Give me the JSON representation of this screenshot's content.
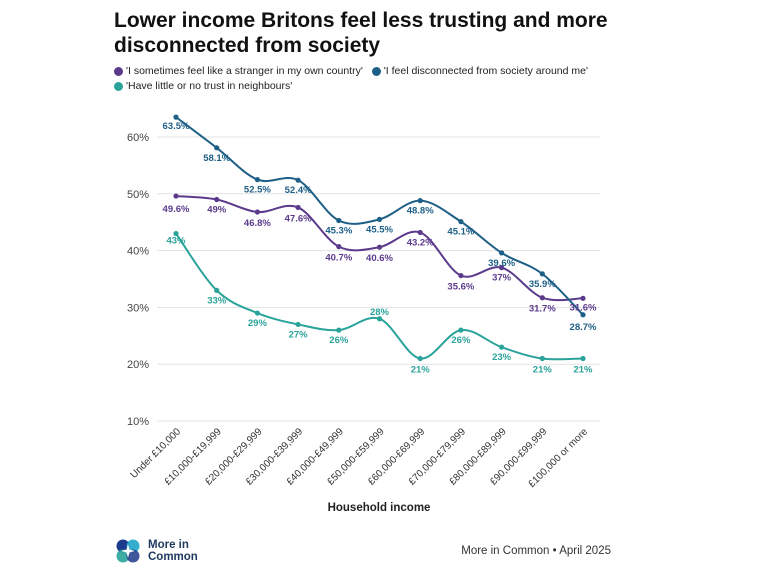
{
  "title": "Lower income Britons feel less trusting and more disconnected from society",
  "chart_data": {
    "type": "line",
    "title": "Lower income Britons feel less trusting and more disconnected from society",
    "xlabel": "Household income",
    "ylabel": "",
    "ylim": [
      10,
      65
    ],
    "yticks": [
      10,
      20,
      30,
      40,
      50,
      60
    ],
    "ytick_labels": [
      "10%",
      "20%",
      "30%",
      "40%",
      "50%",
      "60%"
    ],
    "grid": true,
    "legend_position": "top",
    "categories": [
      "Under £10,000",
      "£10,000-£19,999",
      "£20,000-£29,999",
      "£30,000-£39,999",
      "£40,000-£49,999",
      "£50,000-£59,999",
      "£60,000-£69,999",
      "£70,000-£79,999",
      "£80,000-£89,999",
      "£90,000-£99,999",
      "£100,000 or more"
    ],
    "series": [
      {
        "name": "'I sometimes feel like a stranger in my own country'",
        "color": "#5b3a8c",
        "values": [
          49.6,
          49,
          46.8,
          47.6,
          40.7,
          40.6,
          43.2,
          35.6,
          37,
          31.7,
          31.6
        ],
        "labels": [
          "49.6%",
          "49%",
          "46.8%",
          "47.6%",
          "40.7%",
          "40.6%",
          "43.2%",
          "35.6%",
          "37%",
          "31.7%",
          "31.6%"
        ]
      },
      {
        "name": "'I feel disconnected from society around me'",
        "color": "#1d5f86",
        "values": [
          63.5,
          58.1,
          52.5,
          52.4,
          45.3,
          45.5,
          48.8,
          45.1,
          39.6,
          35.9,
          28.7
        ],
        "labels": [
          "63.5%",
          "58.1%",
          "52.5%",
          "52.4%",
          "45.3%",
          "45.5%",
          "48.8%",
          "45.1%",
          "39.6%",
          "35.9%",
          "28.7%"
        ]
      },
      {
        "name": "'Have little or no trust in neighbours'",
        "color": "#2aa39a",
        "values": [
          43,
          33,
          29,
          27,
          26,
          28,
          21,
          26,
          23,
          21,
          21
        ],
        "labels": [
          "43%",
          "33%",
          "29%",
          "27%",
          "26%",
          "28%",
          "21%",
          "26%",
          "23%",
          "21%",
          "21%"
        ]
      }
    ]
  },
  "footer": {
    "logo_line1": "More in",
    "logo_line2": "Common",
    "source": "More in Common • April 2025"
  }
}
